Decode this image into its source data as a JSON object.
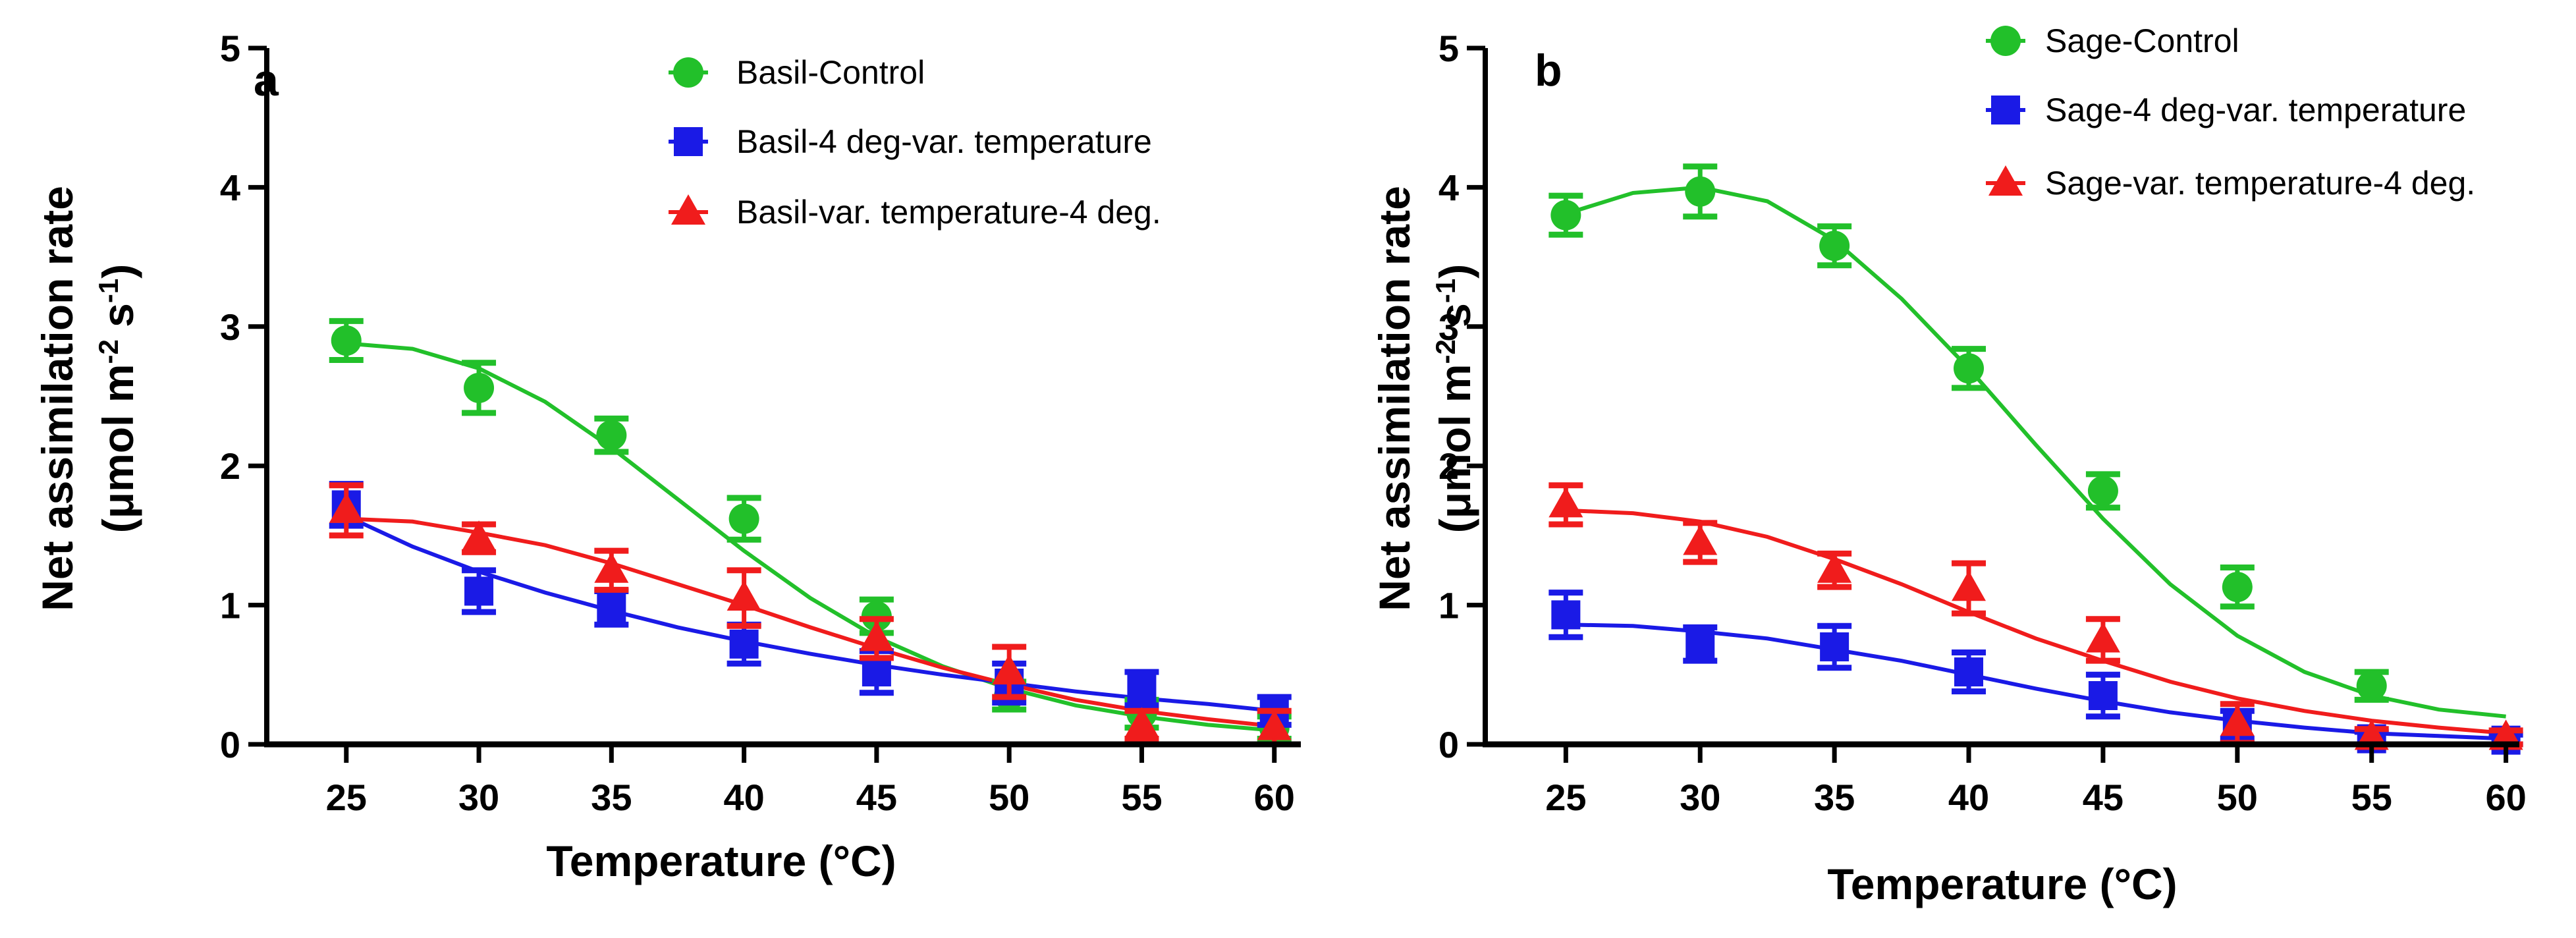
{
  "chart_data": [
    {
      "type": "scatter",
      "panel": "a",
      "xlabel": "Temperature (°C)",
      "ylabel_line1": "Net assimilation rate",
      "ylabel_line2_parts": [
        "(μmol m",
        "-2",
        " s",
        "-1",
        ")"
      ],
      "xlim": [
        22,
        61
      ],
      "ylim": [
        0,
        5
      ],
      "xticks": [
        25,
        30,
        35,
        40,
        45,
        50,
        55,
        60
      ],
      "yticks": [
        0,
        1,
        2,
        3,
        4,
        5
      ],
      "legend_position": "top-right",
      "series": [
        {
          "name": "Basil-Control",
          "color": "#22c02a",
          "marker": "circle",
          "x": [
            25,
            30,
            35,
            40,
            45,
            50,
            55,
            60
          ],
          "y": [
            2.9,
            2.56,
            2.22,
            1.62,
            0.92,
            0.35,
            0.22,
            0.12
          ],
          "err": [
            0.14,
            0.18,
            0.12,
            0.15,
            0.12,
            0.1,
            0.1,
            0.08
          ],
          "fit_x": [
            25,
            27.5,
            30,
            32.5,
            35,
            37.5,
            40,
            42.5,
            45,
            47.5,
            50,
            52.5,
            55,
            57.5,
            60
          ],
          "fit_y": [
            2.88,
            2.84,
            2.7,
            2.46,
            2.13,
            1.76,
            1.39,
            1.05,
            0.77,
            0.56,
            0.4,
            0.28,
            0.2,
            0.14,
            0.1
          ]
        },
        {
          "name": "Basil-4 deg-var. temperature",
          "color": "#1a1ae6",
          "marker": "square",
          "x": [
            25,
            30,
            35,
            40,
            45,
            50,
            55,
            60
          ],
          "y": [
            1.72,
            1.1,
            0.98,
            0.72,
            0.52,
            0.44,
            0.4,
            0.24
          ],
          "err": [
            0.15,
            0.15,
            0.12,
            0.14,
            0.15,
            0.14,
            0.12,
            0.1
          ],
          "fit_x": [
            25,
            27.5,
            30,
            32.5,
            35,
            37.5,
            40,
            42.5,
            45,
            47.5,
            50,
            52.5,
            55,
            57.5,
            60
          ],
          "fit_y": [
            1.64,
            1.42,
            1.24,
            1.09,
            0.96,
            0.84,
            0.74,
            0.65,
            0.57,
            0.5,
            0.44,
            0.38,
            0.33,
            0.29,
            0.24
          ]
        },
        {
          "name": "Basil-var. temperature-4 deg.",
          "color": "#f01c1c",
          "marker": "triangle",
          "x": [
            25,
            30,
            35,
            40,
            45,
            50,
            55,
            60
          ],
          "y": [
            1.68,
            1.48,
            1.25,
            1.05,
            0.76,
            0.52,
            0.14,
            0.12
          ],
          "err": [
            0.18,
            0.1,
            0.14,
            0.2,
            0.14,
            0.18,
            0.1,
            0.12
          ],
          "fit_x": [
            25,
            27.5,
            30,
            32.5,
            35,
            37.5,
            40,
            42.5,
            45,
            47.5,
            50,
            52.5,
            55,
            57.5,
            60
          ],
          "fit_y": [
            1.62,
            1.6,
            1.52,
            1.43,
            1.3,
            1.15,
            1.0,
            0.84,
            0.69,
            0.55,
            0.43,
            0.32,
            0.24,
            0.18,
            0.13
          ]
        }
      ]
    },
    {
      "type": "scatter",
      "panel": "b",
      "xlabel": "Temperature (°C)",
      "ylabel_line1": "Net assimilation rate",
      "ylabel_line2_parts": [
        "(μmol m",
        "-2",
        " s",
        "-1",
        ")"
      ],
      "xlim": [
        22,
        60.5
      ],
      "ylim": [
        0,
        5
      ],
      "xticks": [
        25,
        30,
        35,
        40,
        45,
        50,
        55,
        60
      ],
      "yticks": [
        0,
        1,
        2,
        3,
        4,
        5
      ],
      "legend_position": "top-right",
      "series": [
        {
          "name": "Sage-Control",
          "color": "#22c02a",
          "marker": "circle",
          "x": [
            25,
            30,
            35,
            40,
            45,
            50,
            55
          ],
          "y": [
            3.8,
            3.97,
            3.58,
            2.7,
            1.82,
            1.13,
            0.42
          ],
          "err": [
            0.14,
            0.18,
            0.14,
            0.14,
            0.12,
            0.14,
            0.1
          ],
          "fit_x": [
            25,
            27.5,
            30,
            32.5,
            35,
            37.5,
            40,
            42.5,
            45,
            47.5,
            50,
            52.5,
            55,
            57.5,
            60
          ],
          "fit_y": [
            3.81,
            3.96,
            4.0,
            3.9,
            3.62,
            3.2,
            2.7,
            2.15,
            1.62,
            1.15,
            0.78,
            0.52,
            0.35,
            0.25,
            0.2
          ]
        },
        {
          "name": "Sage-4 deg-var. temperature",
          "color": "#1a1ae6",
          "marker": "square",
          "x": [
            25,
            30,
            35,
            40,
            45,
            50,
            55,
            60
          ],
          "y": [
            0.93,
            0.72,
            0.7,
            0.52,
            0.35,
            0.14,
            0.04,
            0.03
          ],
          "err": [
            0.16,
            0.12,
            0.15,
            0.14,
            0.15,
            0.1,
            0.05,
            0.04
          ],
          "fit_x": [
            25,
            27.5,
            30,
            32.5,
            35,
            37.5,
            40,
            42.5,
            45,
            47.5,
            50,
            52.5,
            55,
            57.5,
            60
          ],
          "fit_y": [
            0.86,
            0.85,
            0.81,
            0.76,
            0.68,
            0.6,
            0.5,
            0.4,
            0.31,
            0.23,
            0.17,
            0.12,
            0.08,
            0.06,
            0.04
          ]
        },
        {
          "name": "Sage-var. temperature-4 deg.",
          "color": "#f01c1c",
          "marker": "triangle",
          "x": [
            25,
            30,
            35,
            40,
            45,
            50,
            55,
            60
          ],
          "y": [
            1.72,
            1.45,
            1.25,
            1.12,
            0.75,
            0.15,
            0.05,
            0.05
          ],
          "err": [
            0.14,
            0.14,
            0.12,
            0.18,
            0.15,
            0.14,
            0.06,
            0.05
          ],
          "fit_x": [
            25,
            27.5,
            30,
            32.5,
            35,
            37.5,
            40,
            42.5,
            45,
            47.5,
            50,
            52.5,
            55,
            57.5,
            60
          ],
          "fit_y": [
            1.68,
            1.66,
            1.6,
            1.49,
            1.33,
            1.15,
            0.95,
            0.76,
            0.6,
            0.45,
            0.33,
            0.24,
            0.17,
            0.12,
            0.08
          ]
        }
      ]
    }
  ]
}
